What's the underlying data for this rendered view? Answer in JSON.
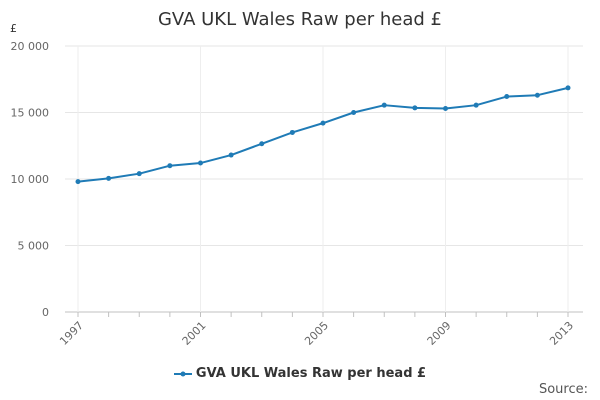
{
  "chart_data": {
    "type": "line",
    "title": "GVA UKL Wales Raw per head £",
    "ylabel": "£",
    "xlabel": "",
    "x": [
      1997,
      1998,
      1999,
      2000,
      2001,
      2002,
      2003,
      2004,
      2005,
      2006,
      2007,
      2008,
      2009,
      2010,
      2011,
      2012,
      2013
    ],
    "x_tick_labels": [
      "1997",
      "2001",
      "2005",
      "2009",
      "2013"
    ],
    "y_tick_labels": [
      "0",
      "5 000",
      "10 000",
      "15 000",
      "20 000"
    ],
    "ylim": [
      0,
      20000
    ],
    "grid": true,
    "series": [
      {
        "name": "GVA UKL Wales Raw per head £",
        "color": "#1f7bb6",
        "values": [
          9800,
          10050,
          10400,
          11000,
          11200,
          11800,
          12650,
          13500,
          14200,
          15000,
          15550,
          15350,
          15300,
          15550,
          16200,
          16300,
          16850
        ]
      }
    ],
    "legend_position": "bottom-center"
  },
  "source_label": "Source:"
}
